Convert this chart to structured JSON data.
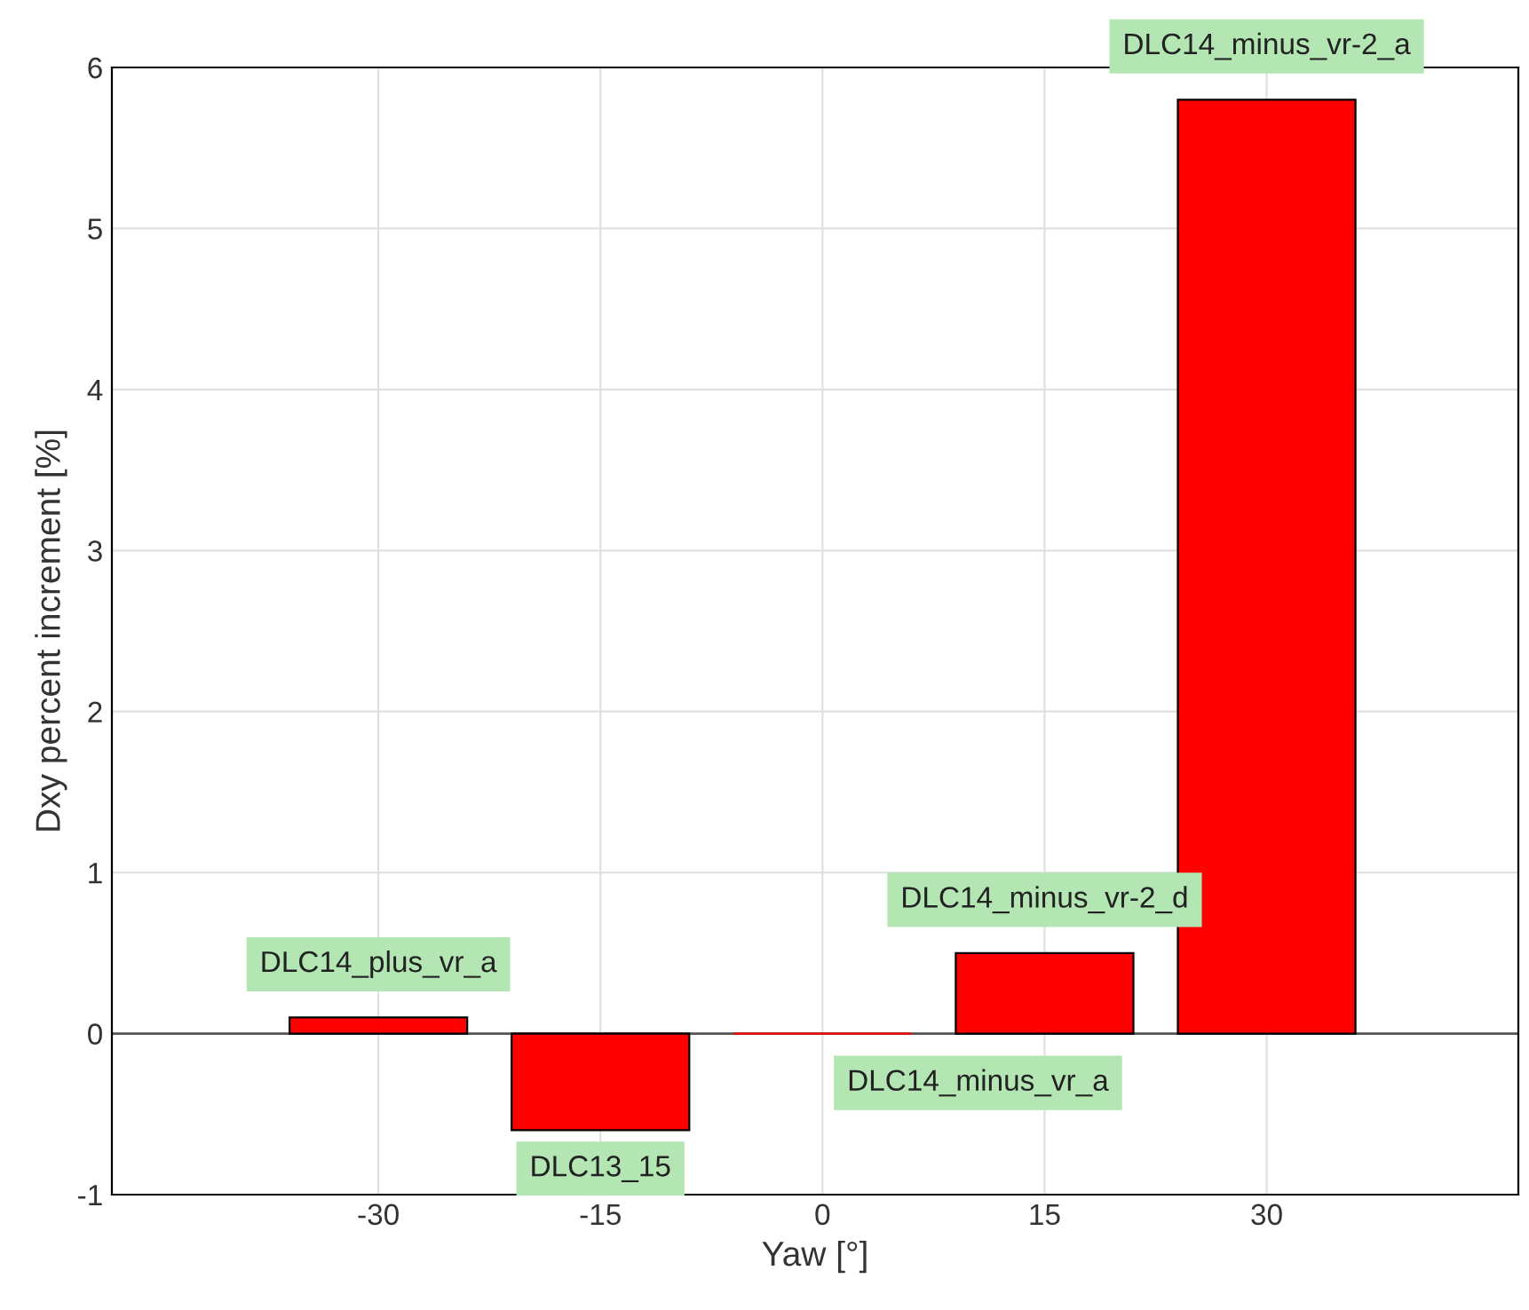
{
  "chart_data": {
    "type": "bar",
    "xlabel": "Yaw [°]",
    "ylabel": "Dxy percent increment [%]",
    "x": [
      -30,
      -15,
      0,
      15,
      30
    ],
    "values": [
      0.1,
      -0.6,
      0,
      0.5,
      5.8
    ],
    "color": "#ff0000",
    "xlim": [
      -48,
      47
    ],
    "xticks": [
      -30,
      -15,
      0,
      15,
      30
    ],
    "ylim": [
      -1,
      6
    ],
    "yticks": [
      -1,
      0,
      1,
      2,
      3,
      4,
      5,
      6
    ],
    "grid": true,
    "annotations": [
      {
        "text": "DLC14_plus_vr_a",
        "x": -30,
        "y": 0.1
      },
      {
        "text": "DLC13_15",
        "x": -15,
        "y": -0.6
      },
      {
        "text": "DLC14_minus_vr_a",
        "x": 0,
        "y": 0
      },
      {
        "text": "DLC14_minus_vr-2_d",
        "x": 15,
        "y": 0.5
      },
      {
        "text": "DLC14_minus_vr-2_a",
        "x": 30,
        "y": 5.8
      }
    ]
  }
}
